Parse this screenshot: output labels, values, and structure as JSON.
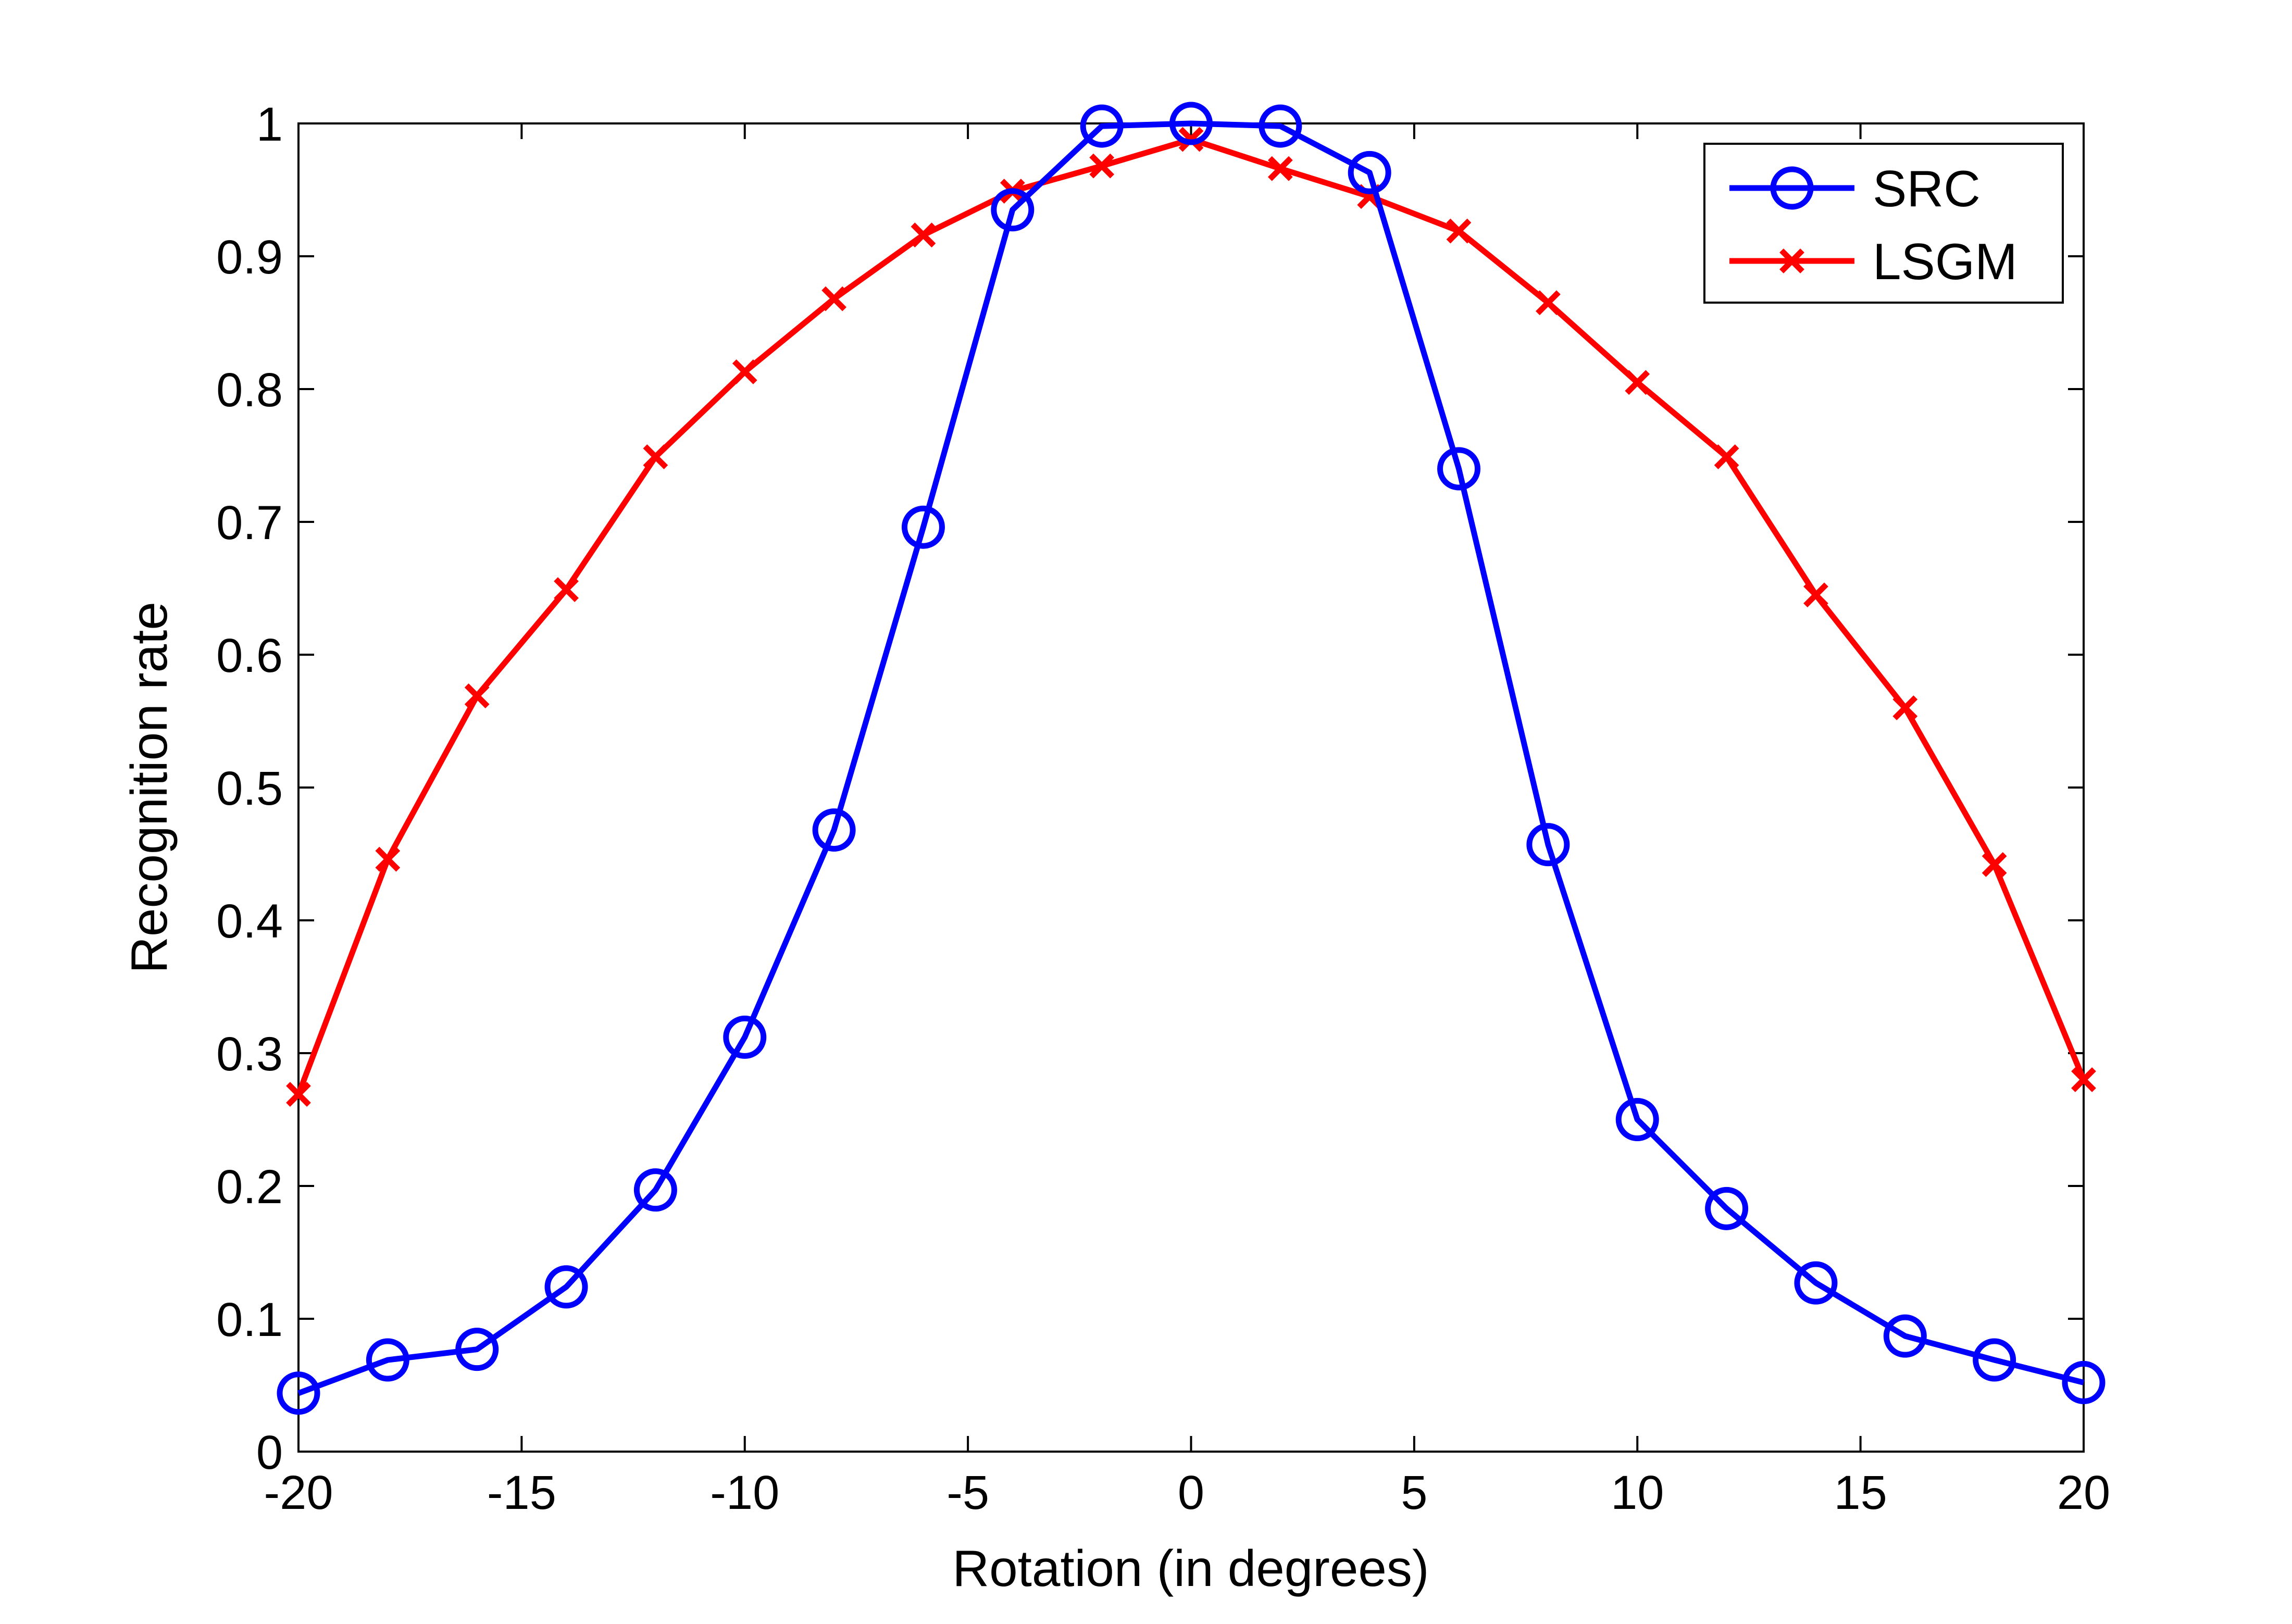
{
  "chart_data": {
    "type": "line",
    "title": "",
    "xlabel": "Rotation (in degrees)",
    "ylabel": "Recognition rate",
    "xlim": [
      -20,
      20
    ],
    "ylim": [
      0,
      1
    ],
    "xticks": [
      -20,
      -15,
      -10,
      -5,
      0,
      5,
      10,
      15,
      20
    ],
    "yticks": [
      0,
      0.1,
      0.2,
      0.3,
      0.4,
      0.5,
      0.6,
      0.7,
      0.8,
      0.9,
      1
    ],
    "grid": false,
    "legend_position": "top-right",
    "x": [
      -20,
      -18,
      -16,
      -14,
      -12,
      -10,
      -8,
      -6,
      -4,
      -2,
      0,
      2,
      4,
      6,
      8,
      10,
      12,
      14,
      16,
      18,
      20
    ],
    "series": [
      {
        "name": "SRC",
        "color": "#0000ff",
        "marker": "circle",
        "values": [
          0.044,
          0.069,
          0.077,
          0.124,
          0.197,
          0.312,
          0.468,
          0.696,
          0.935,
          0.998,
          1.0,
          0.998,
          0.963,
          0.74,
          0.457,
          0.25,
          0.183,
          0.127,
          0.087,
          0.069,
          0.052
        ]
      },
      {
        "name": "LSGM",
        "color": "#ff0000",
        "marker": "x",
        "values": [
          0.269,
          0.446,
          0.569,
          0.649,
          0.749,
          0.813,
          0.868,
          0.916,
          0.949,
          0.968,
          0.988,
          0.966,
          0.945,
          0.919,
          0.865,
          0.805,
          0.749,
          0.645,
          0.56,
          0.442,
          0.28
        ]
      }
    ]
  }
}
